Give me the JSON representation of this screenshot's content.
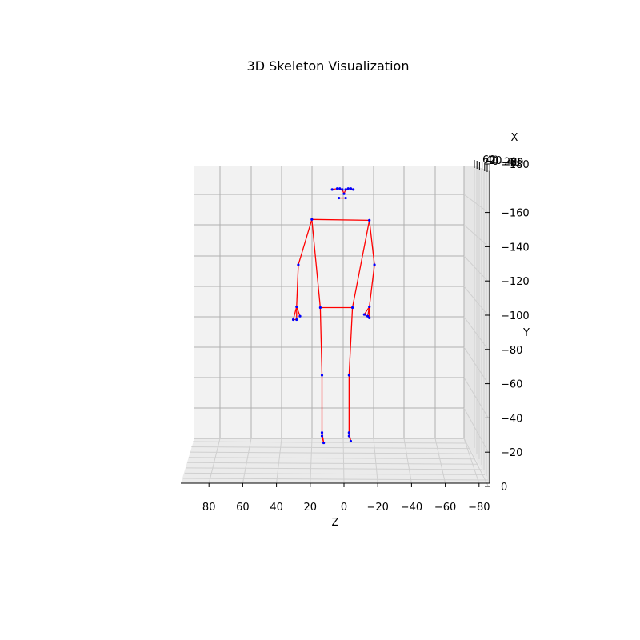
{
  "chart_data": {
    "type": "scatter",
    "title": "3D Skeleton Visualization",
    "xlabel": "X",
    "ylabel": "Y",
    "zlabel": "Z",
    "zlim": [
      90,
      -90
    ],
    "ylim": [
      0,
      180
    ],
    "z_ticks": [
      80,
      60,
      40,
      20,
      0,
      -20,
      -40,
      -60,
      -80
    ],
    "y_ticks": [
      0,
      20,
      40,
      60,
      80,
      100,
      120,
      140,
      160,
      180
    ],
    "x_tick_labels": [
      "60",
      "40",
      "20",
      "0",
      "-20",
      "-40",
      "-60"
    ],
    "colors": {
      "bone": "#ff0000",
      "joint": "#0000ff",
      "pane": "#f2f2f2",
      "grid": "#b0b0b0"
    },
    "joints": [
      {
        "id": "head-left-4",
        "z": 7,
        "y": 172.5
      },
      {
        "id": "head-left-3",
        "z": 4,
        "y": 173
      },
      {
        "id": "head-left-2",
        "z": 2.5,
        "y": 173
      },
      {
        "id": "head-left-1",
        "z": 1,
        "y": 172.5
      },
      {
        "id": "head-center",
        "z": 0,
        "y": 170
      },
      {
        "id": "head-right-1",
        "z": -1,
        "y": 172.5
      },
      {
        "id": "head-right-2",
        "z": -2.5,
        "y": 173
      },
      {
        "id": "head-right-3",
        "z": -4,
        "y": 173
      },
      {
        "id": "head-right-4",
        "z": -5.5,
        "y": 172.5
      },
      {
        "id": "mouth-left",
        "z": 3,
        "y": 167.5
      },
      {
        "id": "mouth-right",
        "z": -1,
        "y": 167.5
      },
      {
        "id": "shoulder-left",
        "z": 19,
        "y": 155
      },
      {
        "id": "shoulder-right",
        "z": -15,
        "y": 154.5
      },
      {
        "id": "elbow-left",
        "z": 27,
        "y": 128.5
      },
      {
        "id": "elbow-right",
        "z": -18,
        "y": 128.5
      },
      {
        "id": "wrist-left",
        "z": 28,
        "y": 104
      },
      {
        "id": "wrist-right",
        "z": -15,
        "y": 104
      },
      {
        "id": "hand-left-a",
        "z": 30,
        "y": 96.5
      },
      {
        "id": "hand-left-b",
        "z": 28,
        "y": 96.5
      },
      {
        "id": "hand-left-c",
        "z": 26,
        "y": 98.5
      },
      {
        "id": "hand-right-a",
        "z": -12,
        "y": 99.5
      },
      {
        "id": "hand-right-b",
        "z": -15,
        "y": 97.5
      },
      {
        "id": "hand-right-c",
        "z": -14,
        "y": 98.5
      },
      {
        "id": "hip-left",
        "z": 14,
        "y": 103.5
      },
      {
        "id": "hip-right",
        "z": -5,
        "y": 103.5
      },
      {
        "id": "knee-left",
        "z": 13,
        "y": 64
      },
      {
        "id": "knee-right",
        "z": -3,
        "y": 64
      },
      {
        "id": "ankle-left",
        "z": 13,
        "y": 30.5
      },
      {
        "id": "ankle-right",
        "z": -3,
        "y": 30.5
      },
      {
        "id": "heel-left",
        "z": 13,
        "y": 28.5
      },
      {
        "id": "heel-right",
        "z": -3,
        "y": 28.5
      },
      {
        "id": "toe-left",
        "z": 12,
        "y": 24.5
      },
      {
        "id": "toe-right",
        "z": -4,
        "y": 25.5
      }
    ],
    "bones": [
      [
        "head-left-4",
        "head-left-3"
      ],
      [
        "head-left-3",
        "head-left-2"
      ],
      [
        "head-left-2",
        "head-left-1"
      ],
      [
        "head-left-1",
        "head-center"
      ],
      [
        "head-center",
        "head-right-1"
      ],
      [
        "head-right-1",
        "head-right-2"
      ],
      [
        "head-right-2",
        "head-right-3"
      ],
      [
        "head-right-3",
        "head-right-4"
      ],
      [
        "mouth-left",
        "mouth-right"
      ],
      [
        "shoulder-left",
        "shoulder-right"
      ],
      [
        "shoulder-left",
        "elbow-left"
      ],
      [
        "elbow-left",
        "wrist-left"
      ],
      [
        "wrist-left",
        "hand-left-a"
      ],
      [
        "wrist-left",
        "hand-left-b"
      ],
      [
        "wrist-left",
        "hand-left-c"
      ],
      [
        "hand-left-a",
        "hand-left-b"
      ],
      [
        "shoulder-right",
        "elbow-right"
      ],
      [
        "elbow-right",
        "wrist-right"
      ],
      [
        "wrist-right",
        "hand-right-a"
      ],
      [
        "wrist-right",
        "hand-right-b"
      ],
      [
        "wrist-right",
        "hand-right-c"
      ],
      [
        "hand-right-a",
        "hand-right-b"
      ],
      [
        "shoulder-left",
        "hip-left"
      ],
      [
        "shoulder-right",
        "hip-right"
      ],
      [
        "hip-left",
        "hip-right"
      ],
      [
        "hip-left",
        "knee-left"
      ],
      [
        "knee-left",
        "ankle-left"
      ],
      [
        "ankle-left",
        "heel-left"
      ],
      [
        "heel-left",
        "toe-left"
      ],
      [
        "ankle-left",
        "toe-left"
      ],
      [
        "hip-right",
        "knee-right"
      ],
      [
        "knee-right",
        "ankle-right"
      ],
      [
        "ankle-right",
        "heel-right"
      ],
      [
        "heel-right",
        "toe-right"
      ],
      [
        "ankle-right",
        "toe-right"
      ]
    ]
  }
}
